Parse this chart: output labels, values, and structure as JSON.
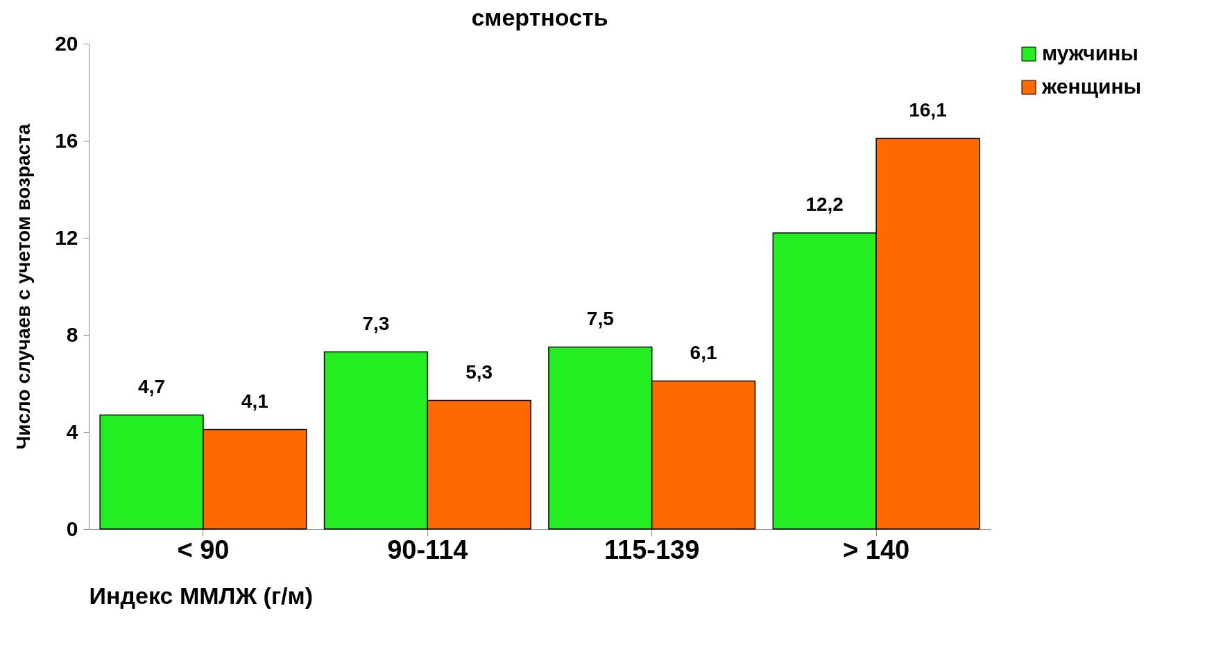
{
  "chart_data": {
    "type": "bar",
    "title": "смертность",
    "xlabel": "Индекс ММЛЖ (г/м)",
    "ylabel": "Число случаев с учетом возраста",
    "categories": [
      "< 90",
      "90-114",
      "115-139",
      "> 140"
    ],
    "series": [
      {
        "name": "мужчины",
        "color": "#22ee22",
        "values": [
          4.7,
          7.3,
          7.5,
          12.2
        ],
        "value_labels": [
          "4,7",
          "7,3",
          "7,5",
          "12,2"
        ]
      },
      {
        "name": "женщины",
        "color": "#ff6a00",
        "values": [
          4.1,
          5.3,
          6.1,
          16.1
        ],
        "value_labels": [
          "4,1",
          "5,3",
          "6,1",
          "16,1"
        ]
      }
    ],
    "ylim": [
      0,
      20
    ],
    "yticks": [
      0,
      4,
      8,
      12,
      16,
      20
    ],
    "grid": false,
    "legend": "top right"
  }
}
